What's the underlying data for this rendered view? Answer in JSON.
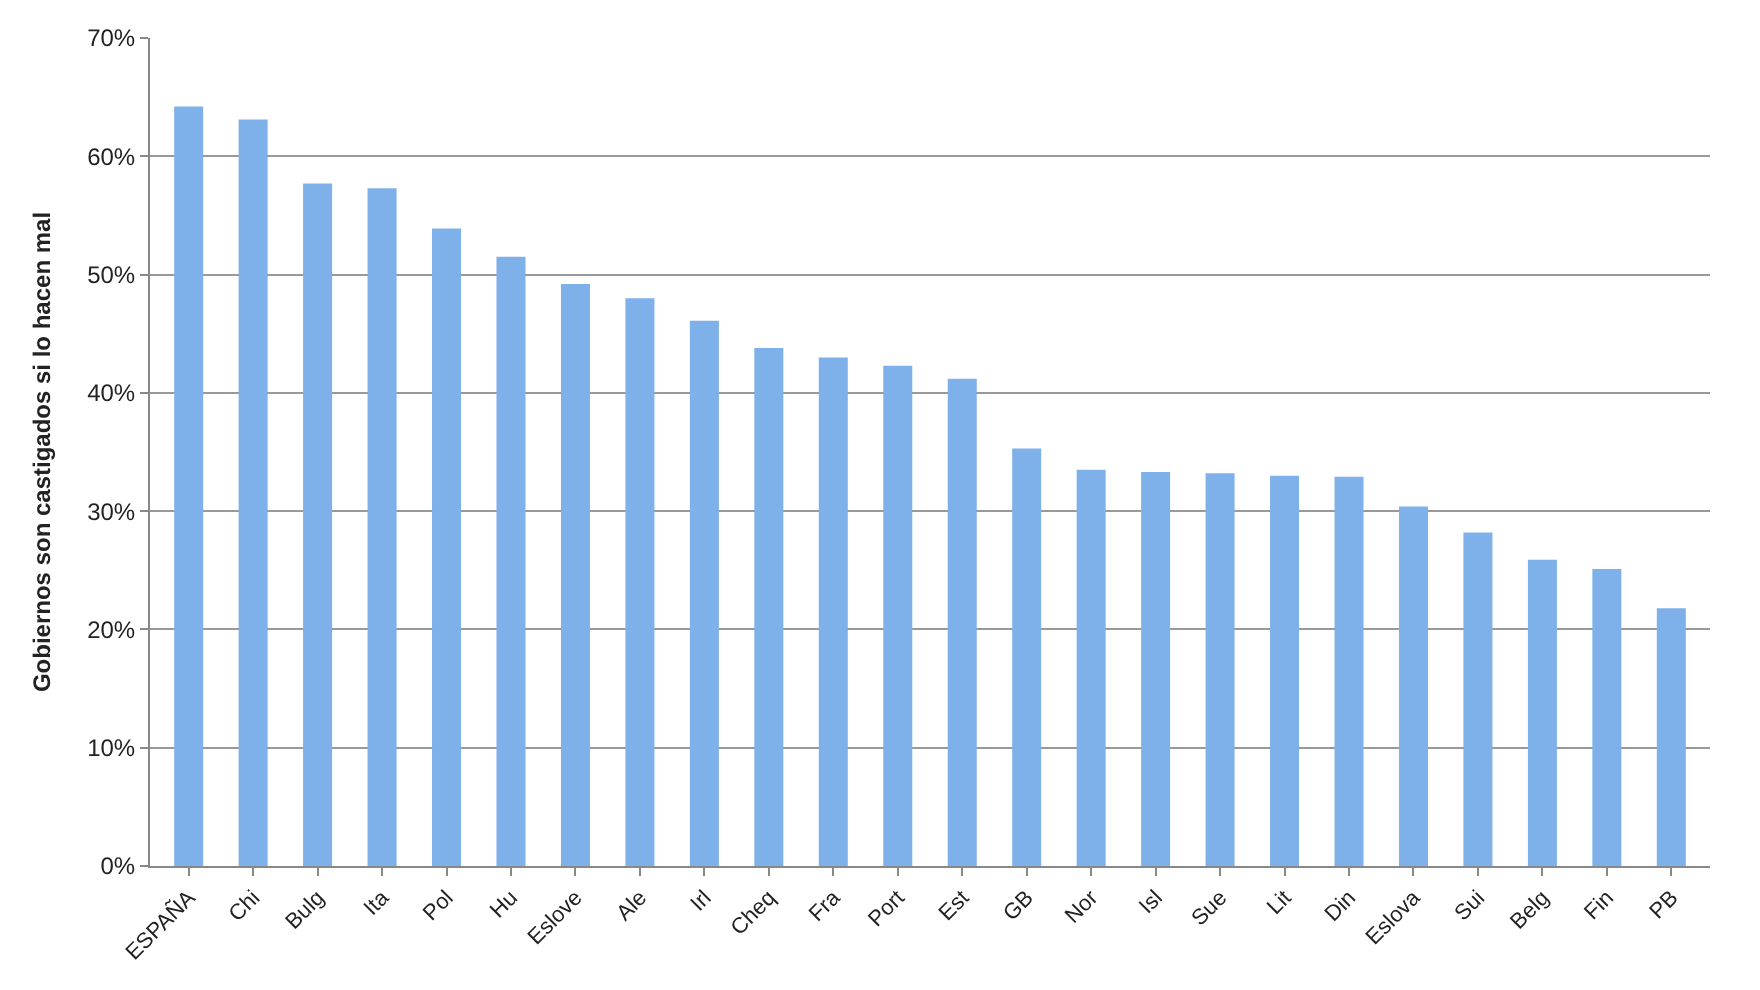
{
  "chart_data": {
    "type": "bar",
    "ylabel": "Gobiernos son castigados si lo hacen mal",
    "categories": [
      "ESPAÑA",
      "Chi",
      "Bulg",
      "Ita",
      "Pol",
      "Hu",
      "Eslove",
      "Ale",
      "Irl",
      "Cheq",
      "Fra",
      "Port",
      "Est",
      "GB",
      "Nor",
      "Isl",
      "Sue",
      "Lit",
      "Din",
      "Eslova",
      "Sui",
      "Belg",
      "Fin",
      "PB"
    ],
    "values": [
      64.2,
      63.1,
      57.7,
      57.3,
      53.9,
      51.5,
      49.2,
      48.0,
      46.1,
      43.8,
      43.0,
      42.3,
      41.2,
      35.3,
      33.5,
      33.3,
      33.2,
      33.0,
      32.9,
      30.4,
      28.2,
      25.9,
      25.1,
      21.8
    ],
    "color": "#7eb0ea",
    "ylim": [
      0,
      70
    ],
    "yticks": [
      {
        "value": 0,
        "label": "0%"
      },
      {
        "value": 10,
        "label": "10%"
      },
      {
        "value": 20,
        "label": "20%"
      },
      {
        "value": 30,
        "label": "30%"
      },
      {
        "value": 40,
        "label": "40%"
      },
      {
        "value": 50,
        "label": "50%"
      },
      {
        "value": 60,
        "label": "60%"
      },
      {
        "value": 70,
        "label": "70%"
      }
    ],
    "grid": "y"
  }
}
